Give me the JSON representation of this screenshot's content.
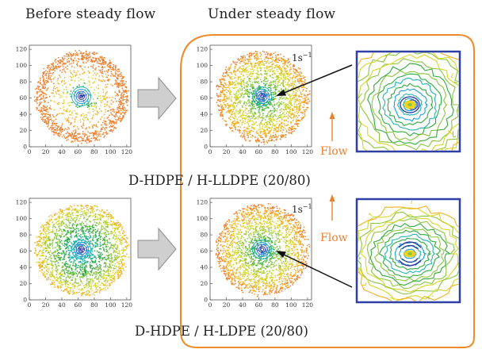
{
  "headings": {
    "before": "Before steady flow",
    "under": "Under steady flow"
  },
  "samples": [
    {
      "label": "D-HDPE / H-LLDPE (20/80)"
    },
    {
      "label": "D-HDPE / H-LDPE (20/80)"
    }
  ],
  "axis": {
    "x_ticks": [
      "0",
      "20",
      "40",
      "60",
      "80",
      "100",
      "120"
    ],
    "y_ticks": [
      "0",
      "20",
      "40",
      "60",
      "80",
      "100",
      "120"
    ],
    "xlim": [
      0,
      125
    ],
    "ylim": [
      0,
      125
    ]
  },
  "shear_rate": {
    "base": "1s",
    "exponent": "−1"
  },
  "flow_label": "Flow",
  "colors": {
    "frame": "#ef8a2a",
    "flow_arrow": "#ee7f2d",
    "zoom_border": "#2e3fa5",
    "process_arrow": "#c8c8c8",
    "ring_scale": [
      "#2a2f9e",
      "#3d64c8",
      "#1e9fd9",
      "#22b4b0",
      "#2faa3c",
      "#8cc63f",
      "#d7d726",
      "#f2b022",
      "#ee7f2d"
    ]
  }
}
